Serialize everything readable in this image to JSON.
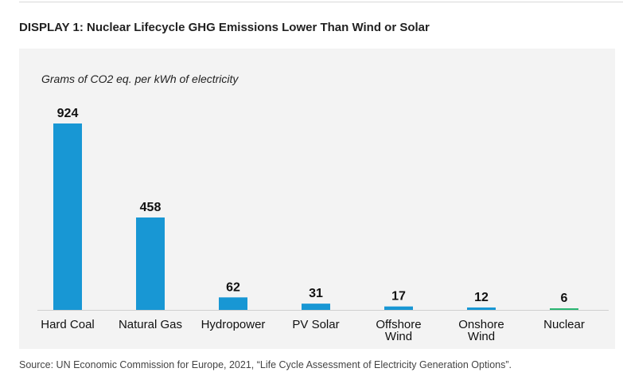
{
  "header": {
    "title": "DISPLAY 1: Nuclear Lifecycle GHG Emissions Lower Than Wind or Solar"
  },
  "chart_data": {
    "type": "bar",
    "ylabel": "Grams of CO2 eq. per kWh of electricity",
    "categories": [
      [
        "Hard Coal"
      ],
      [
        "Natural Gas"
      ],
      [
        "Hydropower"
      ],
      [
        "PV Solar"
      ],
      [
        "Offshore",
        "Wind"
      ],
      [
        "Onshore",
        "Wind"
      ],
      [
        "Nuclear"
      ]
    ],
    "values": [
      924,
      458,
      62,
      31,
      17,
      12,
      6
    ],
    "value_labels": [
      "924",
      "458",
      "62",
      "31",
      "17",
      "12",
      "6"
    ],
    "colors": [
      "#1897d4",
      "#1897d4",
      "#1897d4",
      "#1897d4",
      "#1897d4",
      "#1897d4",
      "#2bb673"
    ],
    "ylim": [
      0,
      924
    ],
    "grid": false,
    "legend": "none"
  },
  "footer": {
    "source": "Source: UN Economic Commission for Europe, 2021, “Life Cycle Assessment of Electricity Generation Options”."
  }
}
